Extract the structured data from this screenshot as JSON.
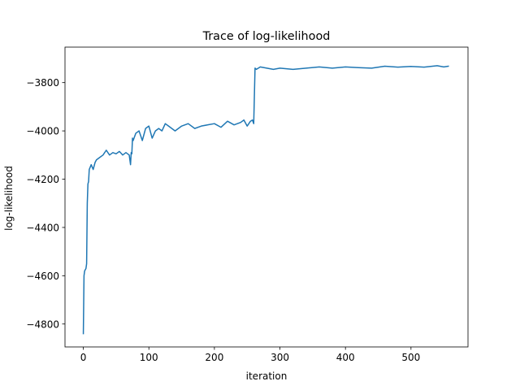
{
  "chart_data": {
    "type": "line",
    "title": "Trace of log-likelihood",
    "xlabel": "iteration",
    "ylabel": "log-likelihood",
    "xlim": [
      -28,
      587
    ],
    "ylim": [
      -4895,
      -3653
    ],
    "xticks": [
      0,
      100,
      200,
      300,
      400,
      500
    ],
    "yticks": [
      -4800,
      -4600,
      -4400,
      -4200,
      -4000,
      -3800
    ],
    "xtick_labels": [
      "0",
      "100",
      "200",
      "300",
      "400",
      "500"
    ],
    "ytick_labels": [
      "−4800",
      "−4600",
      "−4400",
      "−4200",
      "−4000",
      "−3800"
    ],
    "grid": false,
    "legend": "none",
    "series": [
      {
        "color": "#1f77b4",
        "x": [
          0,
          1,
          2,
          4,
          5,
          6,
          7,
          8,
          9,
          12,
          15,
          18,
          20,
          25,
          30,
          35,
          40,
          45,
          50,
          55,
          60,
          65,
          70,
          72,
          73,
          74,
          75,
          76,
          80,
          85,
          90,
          95,
          100,
          105,
          110,
          115,
          120,
          125,
          130,
          140,
          150,
          160,
          170,
          180,
          190,
          200,
          210,
          220,
          230,
          240,
          245,
          250,
          255,
          258,
          260,
          262,
          264,
          270,
          280,
          290,
          300,
          320,
          340,
          360,
          380,
          400,
          420,
          440,
          460,
          480,
          500,
          520,
          540,
          550,
          557
        ],
        "y": [
          -4840,
          -4600,
          -4580,
          -4570,
          -4550,
          -4300,
          -4220,
          -4210,
          -4160,
          -4140,
          -4160,
          -4130,
          -4120,
          -4110,
          -4100,
          -4080,
          -4100,
          -4090,
          -4095,
          -4085,
          -4100,
          -4090,
          -4100,
          -4140,
          -4090,
          -4095,
          -4030,
          -4040,
          -4010,
          -4000,
          -4040,
          -3990,
          -3980,
          -4030,
          -4000,
          -3990,
          -4000,
          -3970,
          -3980,
          -4000,
          -3980,
          -3970,
          -3990,
          -3980,
          -3975,
          -3970,
          -3985,
          -3960,
          -3975,
          -3965,
          -3955,
          -3980,
          -3960,
          -3955,
          -3970,
          -3740,
          -3745,
          -3735,
          -3740,
          -3745,
          -3740,
          -3745,
          -3740,
          -3735,
          -3740,
          -3735,
          -3738,
          -3740,
          -3732,
          -3736,
          -3733,
          -3736,
          -3730,
          -3735,
          -3732
        ]
      }
    ]
  }
}
